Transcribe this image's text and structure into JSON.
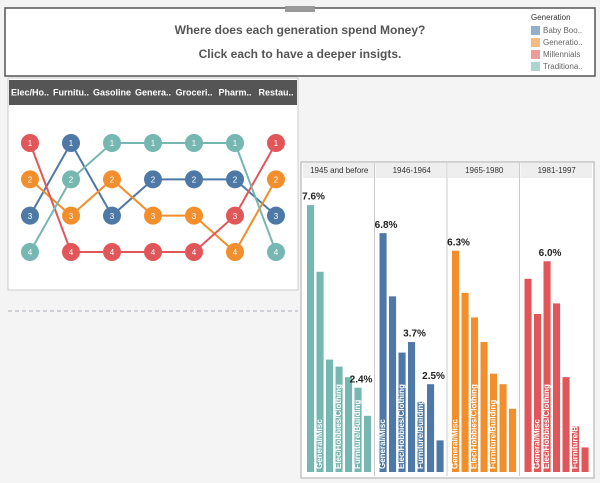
{
  "header": {
    "title": "Where does each generation spend Money?",
    "subtitle": "Click each to have a deeper insigts."
  },
  "legend_title": "Generation",
  "chart_data": [
    {
      "type": "bump",
      "categories": [
        "Elec/Ho..",
        "Furnitu..",
        "Gasoline",
        "Genera..",
        "Groceri..",
        "Pharm..",
        "Restau.."
      ],
      "ylim": [
        1,
        4
      ],
      "y_reversed": true,
      "series": [
        {
          "name": "Baby Boo..",
          "color": "#4e79a7",
          "values": [
            3,
            1,
            3,
            2,
            2,
            2,
            3
          ]
        },
        {
          "name": "Generatio..",
          "color": "#f28e2b",
          "values": [
            2,
            3,
            2,
            3,
            3,
            4,
            2
          ]
        },
        {
          "name": "Millennials",
          "color": "#e15759",
          "values": [
            1,
            4,
            4,
            4,
            4,
            3,
            1
          ]
        },
        {
          "name": "Traditiona..",
          "color": "#76b7b2",
          "values": [
            4,
            2,
            1,
            1,
            1,
            1,
            4
          ]
        }
      ]
    },
    {
      "type": "bar",
      "title": "1945 and before",
      "color": "#76b7b2",
      "ylim": [
        0,
        8
      ],
      "categories": [
        null,
        "General/Misc",
        null,
        "Elec/Hobbies/Clothing",
        null,
        "Furniture/Building",
        null
      ],
      "values": [
        7.6,
        5.7,
        3.2,
        3.0,
        2.7,
        2.4,
        1.6
      ],
      "value_labels": [
        "7.6%",
        null,
        null,
        null,
        null,
        "2.4%",
        null
      ]
    },
    {
      "type": "bar",
      "title": "1946-1964",
      "color": "#4e79a7",
      "ylim": [
        0,
        8
      ],
      "categories": [
        "General/Misc",
        null,
        "Elec/Hobbies/Clothing",
        null,
        "Furniture/Building",
        null,
        null
      ],
      "values": [
        6.8,
        5.0,
        3.4,
        3.7,
        2.0,
        2.5,
        0.9
      ],
      "value_labels": [
        "6.8%",
        null,
        null,
        "3.7%",
        null,
        "2.5%",
        null
      ]
    },
    {
      "type": "bar",
      "title": "1965-1980",
      "color": "#f28e2b",
      "ylim": [
        0,
        8
      ],
      "categories": [
        "General/Misc",
        null,
        "Elec/Hobbies/Clothing",
        null,
        "Furniture/Building",
        null,
        null
      ],
      "values": [
        6.3,
        5.1,
        4.4,
        3.7,
        2.8,
        2.5,
        1.8
      ],
      "value_labels": [
        "6.3%",
        null,
        null,
        null,
        null,
        null,
        null
      ]
    },
    {
      "type": "bar",
      "title": "1981-1997",
      "color": "#e15759",
      "ylim": [
        0,
        8
      ],
      "categories": [
        null,
        "General/Misc",
        "Elec/Hobbies/Clothing",
        null,
        null,
        "Furniture/Building",
        null
      ],
      "values": [
        5.5,
        4.5,
        6.0,
        4.8,
        2.7,
        1.3,
        0.7
      ],
      "value_labels": [
        null,
        null,
        "6.0%",
        null,
        null,
        null,
        null
      ]
    }
  ]
}
